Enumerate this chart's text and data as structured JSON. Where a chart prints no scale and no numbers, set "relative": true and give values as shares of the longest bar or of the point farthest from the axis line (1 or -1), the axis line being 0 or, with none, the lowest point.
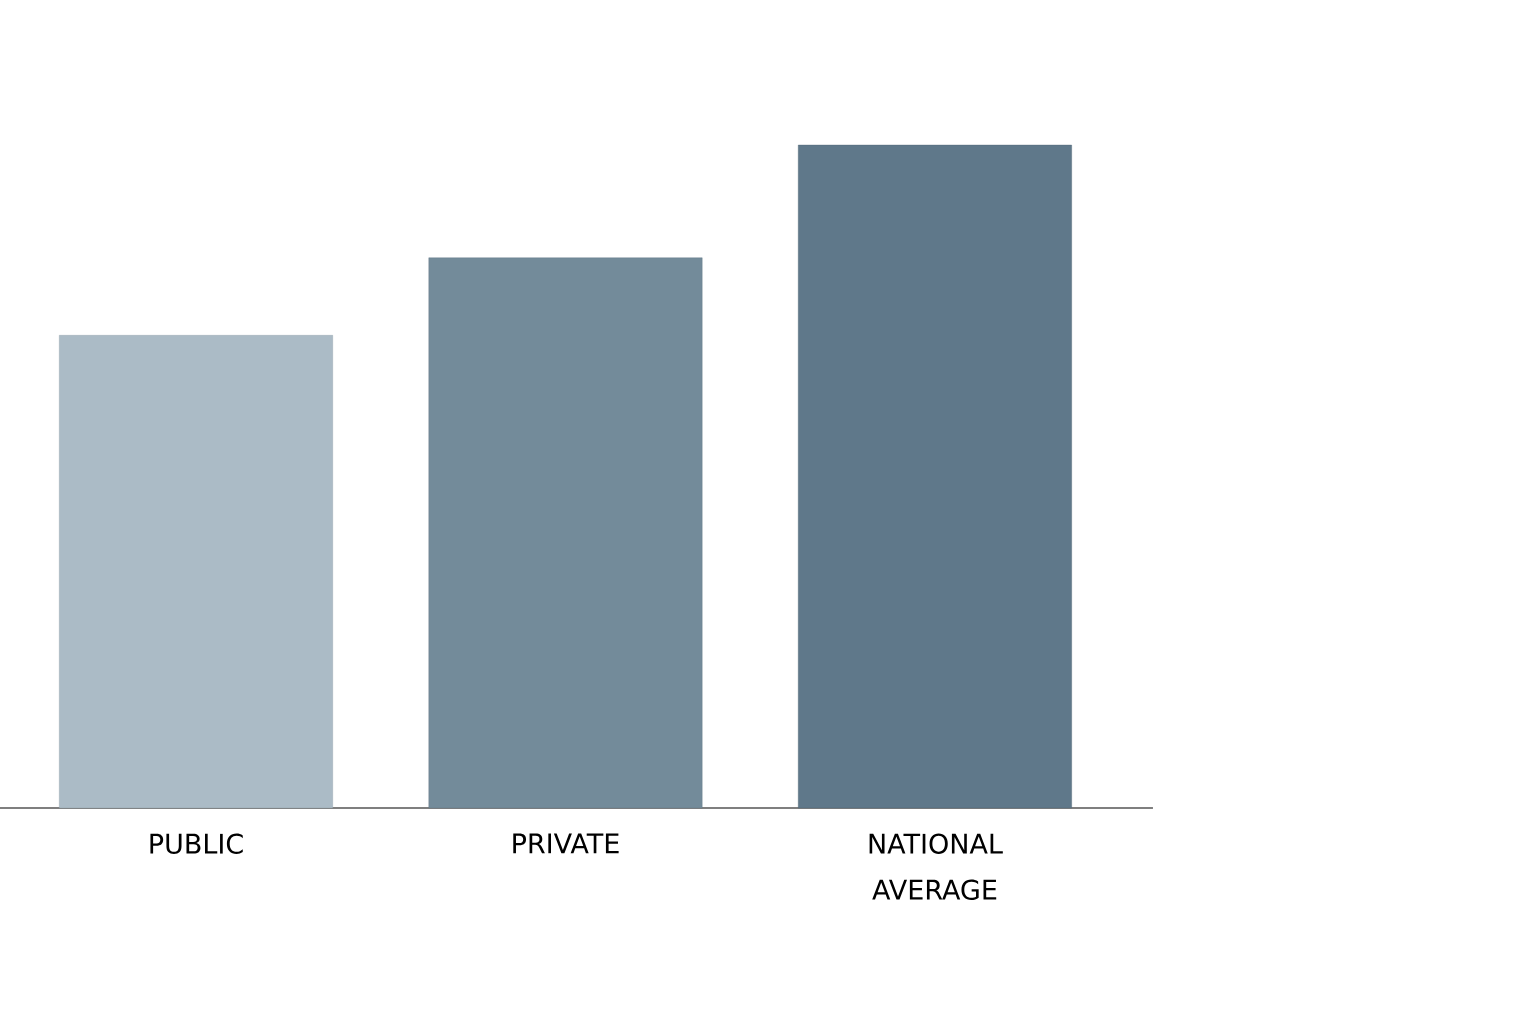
{
  "chart_data": {
    "type": "bar",
    "relative": true,
    "categories": [
      "PUBLIC",
      "PRIVATE",
      "NATIONAL AVERAGE"
    ],
    "values": [
      0.713,
      0.83,
      1
    ],
    "colors": [
      "#abbbc6",
      "#738b9a",
      "#5f788a"
    ]
  }
}
